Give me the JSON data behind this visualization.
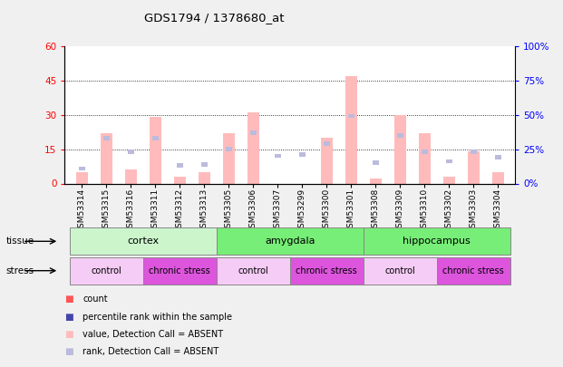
{
  "title": "GDS1794 / 1378680_at",
  "samples": [
    "GSM53314",
    "GSM53315",
    "GSM53316",
    "GSM53311",
    "GSM53312",
    "GSM53313",
    "GSM53305",
    "GSM53306",
    "GSM53307",
    "GSM53299",
    "GSM53300",
    "GSM53301",
    "GSM53308",
    "GSM53309",
    "GSM53310",
    "GSM53302",
    "GSM53303",
    "GSM53304"
  ],
  "ylim_left": [
    0,
    60
  ],
  "ylim_right": [
    0,
    100
  ],
  "yticks_left": [
    0,
    15,
    30,
    45,
    60
  ],
  "yticks_right": [
    0,
    25,
    50,
    75,
    100
  ],
  "ytick_labels_left": [
    "0",
    "15",
    "30",
    "45",
    "60"
  ],
  "ytick_labels_right": [
    "0%",
    "25%",
    "50%",
    "75%",
    "100%"
  ],
  "bar_width": 0.5,
  "count_color": "#ff5555",
  "rank_color": "#4444aa",
  "absent_count_color": "#ffbbbb",
  "absent_rank_color": "#bbbbdd",
  "background_color": "#f0f0f0",
  "plot_bg": "#ffffff",
  "tissue_colors": {
    "cortex": "#ccf5cc",
    "amygdala": "#77ee77",
    "hippocampus": "#77ee77"
  },
  "stress_colors": {
    "control": "#f5ccf5",
    "chronic stress": "#dd55dd"
  },
  "tissue_groups": [
    {
      "label": "cortex",
      "start": 0,
      "end": 6
    },
    {
      "label": "amygdala",
      "start": 6,
      "end": 12
    },
    {
      "label": "hippocampus",
      "start": 12,
      "end": 18
    }
  ],
  "stress_groups": [
    {
      "label": "control",
      "start": 0,
      "end": 3
    },
    {
      "label": "chronic stress",
      "start": 3,
      "end": 6
    },
    {
      "label": "control",
      "start": 6,
      "end": 9
    },
    {
      "label": "chronic stress",
      "start": 9,
      "end": 12
    },
    {
      "label": "control",
      "start": 12,
      "end": 15
    },
    {
      "label": "chronic stress",
      "start": 15,
      "end": 18
    }
  ],
  "bar_data": [
    {
      "sample": "GSM53314",
      "absent_count": 5,
      "absent_rank": 11,
      "count": null,
      "rank": null
    },
    {
      "sample": "GSM53315",
      "absent_count": 22,
      "absent_rank": 33,
      "count": null,
      "rank": null
    },
    {
      "sample": "GSM53316",
      "absent_count": 6,
      "absent_rank": 23,
      "count": null,
      "rank": null
    },
    {
      "sample": "GSM53311",
      "absent_count": 29,
      "absent_rank": 33,
      "count": null,
      "rank": null
    },
    {
      "sample": "GSM53312",
      "absent_count": 3,
      "absent_rank": 13,
      "count": null,
      "rank": null
    },
    {
      "sample": "GSM53313",
      "absent_count": 5,
      "absent_rank": 14,
      "count": null,
      "rank": null
    },
    {
      "sample": "GSM53305",
      "absent_count": 22,
      "absent_rank": 25,
      "count": null,
      "rank": null
    },
    {
      "sample": "GSM53306",
      "absent_count": 31,
      "absent_rank": 37,
      "count": null,
      "rank": null
    },
    {
      "sample": "GSM53307",
      "absent_count": 0,
      "absent_rank": 20,
      "count": null,
      "rank": null
    },
    {
      "sample": "GSM53299",
      "absent_count": 0,
      "absent_rank": 21,
      "count": null,
      "rank": null
    },
    {
      "sample": "GSM53300",
      "absent_count": 20,
      "absent_rank": 29,
      "count": null,
      "rank": null
    },
    {
      "sample": "GSM53301",
      "absent_count": 47,
      "absent_rank": 49,
      "count": null,
      "rank": null
    },
    {
      "sample": "GSM53308",
      "absent_count": 2,
      "absent_rank": 15,
      "count": null,
      "rank": null
    },
    {
      "sample": "GSM53309",
      "absent_count": 30,
      "absent_rank": 35,
      "count": null,
      "rank": null
    },
    {
      "sample": "GSM53310",
      "absent_count": 22,
      "absent_rank": 23,
      "count": null,
      "rank": null
    },
    {
      "sample": "GSM53302",
      "absent_count": 3,
      "absent_rank": 16,
      "count": null,
      "rank": null
    },
    {
      "sample": "GSM53303",
      "absent_count": 14,
      "absent_rank": 23,
      "count": null,
      "rank": null
    },
    {
      "sample": "GSM53304",
      "absent_count": 5,
      "absent_rank": 19,
      "count": null,
      "rank": null
    }
  ],
  "legend_items": [
    {
      "color": "#ff5555",
      "label": "count"
    },
    {
      "color": "#4444aa",
      "label": "percentile rank within the sample"
    },
    {
      "color": "#ffbbbb",
      "label": "value, Detection Call = ABSENT"
    },
    {
      "color": "#bbbbdd",
      "label": "rank, Detection Call = ABSENT"
    }
  ]
}
